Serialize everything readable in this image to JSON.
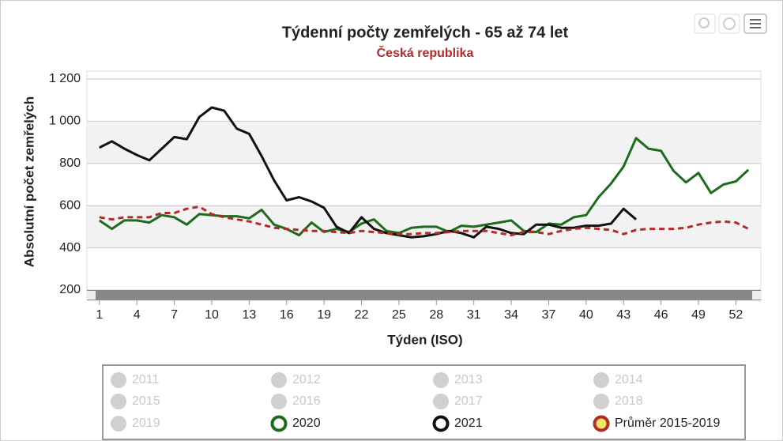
{
  "chart_data": {
    "type": "line",
    "title": "Týdenní počty zemřelých - 65 až 74 let",
    "subtitle": "Česká republika",
    "x_label": "Týden (ISO)",
    "y_label": "Absolutní počet zemřelých",
    "x": [
      1,
      2,
      3,
      4,
      5,
      6,
      7,
      8,
      9,
      10,
      11,
      12,
      13,
      14,
      15,
      16,
      17,
      18,
      19,
      20,
      21,
      22,
      23,
      24,
      25,
      26,
      27,
      28,
      29,
      30,
      31,
      32,
      33,
      34,
      35,
      36,
      37,
      38,
      39,
      40,
      41,
      42,
      43,
      44,
      45,
      46,
      47,
      48,
      49,
      50,
      51,
      52,
      53
    ],
    "xlim": [
      0,
      54
    ],
    "xticks": [
      1,
      4,
      7,
      10,
      13,
      16,
      19,
      22,
      25,
      28,
      31,
      34,
      37,
      40,
      43,
      46,
      49,
      52
    ],
    "ylim": [
      200,
      1200
    ],
    "yticks": [
      200,
      400,
      600,
      800,
      {
        "value": 1000,
        "label": "1 000"
      },
      {
        "value": 1200,
        "label": "1 200"
      }
    ],
    "grid": true,
    "hidden_series": [
      "2011",
      "2012",
      "2013",
      "2014",
      "2015",
      "2016",
      "2017",
      "2018",
      "2019"
    ],
    "series": [
      {
        "name": "2020",
        "color": "#1e6b1e",
        "values": [
          530,
          490,
          530,
          530,
          520,
          555,
          545,
          510,
          560,
          555,
          550,
          550,
          540,
          580,
          510,
          490,
          460,
          520,
          475,
          490,
          475,
          515,
          535,
          480,
          470,
          495,
          500,
          500,
          475,
          505,
          500,
          510,
          520,
          530,
          480,
          475,
          515,
          510,
          545,
          555,
          640,
          705,
          785,
          920,
          870,
          860,
          765,
          710,
          755,
          660,
          700,
          715,
          770
        ]
      },
      {
        "name": "2021",
        "color": "#111111",
        "values": [
          875,
          905,
          870,
          840,
          815,
          870,
          925,
          915,
          1020,
          1065,
          1050,
          965,
          940,
          835,
          720,
          625,
          640,
          620,
          590,
          500,
          470,
          545,
          490,
          470,
          460,
          450,
          455,
          465,
          480,
          470,
          450,
          500,
          490,
          470,
          465,
          510,
          510,
          495,
          495,
          505,
          505,
          515,
          585,
          535,
          null,
          null,
          null,
          null,
          null,
          null,
          null,
          null,
          null
        ]
      },
      {
        "name": "Průměr 2015-2019",
        "color": "#b22a2a",
        "marker_color": "#f5e663",
        "dashed": true,
        "values": [
          545,
          535,
          545,
          545,
          545,
          565,
          565,
          585,
          595,
          560,
          545,
          535,
          525,
          510,
          495,
          490,
          485,
          480,
          480,
          475,
          470,
          480,
          475,
          470,
          465,
          465,
          470,
          470,
          475,
          480,
          480,
          480,
          470,
          460,
          475,
          475,
          465,
          480,
          490,
          495,
          490,
          485,
          465,
          485,
          490,
          490,
          490,
          495,
          510,
          520,
          525,
          520,
          490
        ]
      }
    ]
  }
}
